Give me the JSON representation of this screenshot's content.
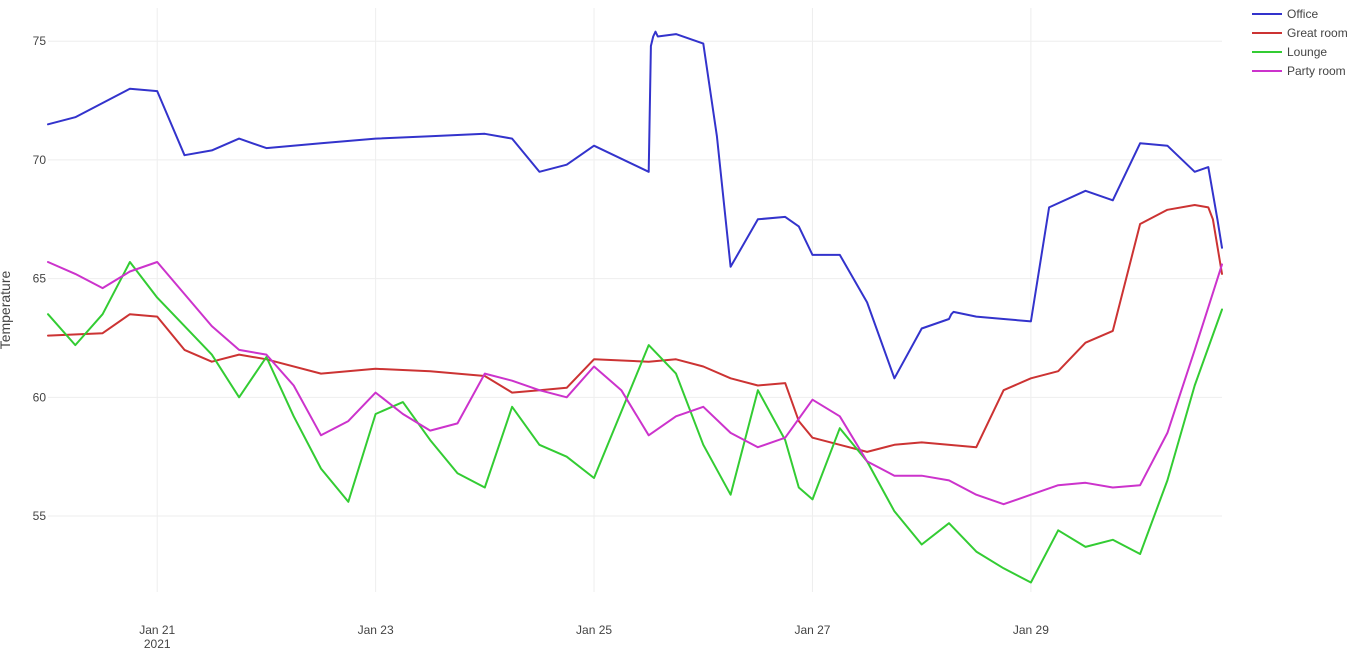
{
  "chart_data": {
    "type": "line",
    "title": "",
    "xlabel": "",
    "ylabel": "Temperature",
    "x_axis": {
      "type": "date",
      "range": [
        "2021-01-20T00:00",
        "2021-01-30T18:00"
      ],
      "ticks": [
        {
          "x": "2021-01-21",
          "label": "Jan 21",
          "sublabel": "2021"
        },
        {
          "x": "2021-01-23",
          "label": "Jan 23",
          "sublabel": ""
        },
        {
          "x": "2021-01-25",
          "label": "Jan 25",
          "sublabel": ""
        },
        {
          "x": "2021-01-27",
          "label": "Jan 27",
          "sublabel": ""
        },
        {
          "x": "2021-01-29",
          "label": "Jan 29",
          "sublabel": ""
        }
      ]
    },
    "y_axis": {
      "range": [
        51.8,
        76.4
      ],
      "ticks": [
        55,
        60,
        65,
        70,
        75
      ]
    },
    "grid": true,
    "legend_position": "top-right",
    "series": [
      {
        "name": "Office",
        "color": "#3333cc",
        "x": [
          "2021-01-20T00:00",
          "2021-01-20T06:00",
          "2021-01-20T12:00",
          "2021-01-20T18:00",
          "2021-01-21T00:00",
          "2021-01-21T06:00",
          "2021-01-21T12:00",
          "2021-01-21T18:00",
          "2021-01-22T00:00",
          "2021-01-22T12:00",
          "2021-01-23T00:00",
          "2021-01-23T12:00",
          "2021-01-24T00:00",
          "2021-01-24T06:00",
          "2021-01-24T12:00",
          "2021-01-24T18:00",
          "2021-01-24T21:00",
          "2021-01-25T00:00",
          "2021-01-25T12:00",
          "2021-01-25T12:30",
          "2021-01-25T13:00",
          "2021-01-25T13:30",
          "2021-01-25T14:00",
          "2021-01-25T18:00",
          "2021-01-26T00:00",
          "2021-01-26T03:00",
          "2021-01-26T06:00",
          "2021-01-26T12:00",
          "2021-01-26T18:00",
          "2021-01-26T21:00",
          "2021-01-27T00:00",
          "2021-01-27T06:00",
          "2021-01-27T12:00",
          "2021-01-27T18:00",
          "2021-01-28T00:00",
          "2021-01-28T06:00",
          "2021-01-28T06:30",
          "2021-01-28T07:00",
          "2021-01-28T12:00",
          "2021-01-28T18:00",
          "2021-01-29T00:00",
          "2021-01-29T04:00",
          "2021-01-29T12:00",
          "2021-01-29T18:00",
          "2021-01-30T00:00",
          "2021-01-30T06:00",
          "2021-01-30T12:00",
          "2021-01-30T15:00",
          "2021-01-30T17:00",
          "2021-01-30T18:00"
        ],
        "y": [
          71.5,
          71.8,
          72.4,
          73.0,
          72.9,
          70.2,
          70.4,
          70.9,
          70.5,
          70.7,
          70.9,
          71.0,
          71.1,
          70.9,
          69.5,
          69.8,
          70.2,
          70.6,
          69.5,
          74.8,
          75.2,
          75.4,
          75.2,
          75.3,
          74.9,
          71.0,
          65.5,
          67.5,
          67.6,
          67.2,
          66.0,
          66.0,
          64.0,
          60.8,
          62.9,
          63.3,
          63.5,
          63.6,
          63.4,
          63.3,
          63.2,
          68.0,
          68.7,
          68.3,
          70.7,
          70.6,
          69.5,
          69.7,
          67.5,
          66.3
        ]
      },
      {
        "name": "Great room",
        "color": "#cc3333",
        "x": [
          "2021-01-20T00:00",
          "2021-01-20T12:00",
          "2021-01-20T18:00",
          "2021-01-21T00:00",
          "2021-01-21T06:00",
          "2021-01-21T12:00",
          "2021-01-21T18:00",
          "2021-01-22T00:00",
          "2021-01-22T12:00",
          "2021-01-23T00:00",
          "2021-01-23T12:00",
          "2021-01-24T00:00",
          "2021-01-24T06:00",
          "2021-01-24T12:00",
          "2021-01-24T18:00",
          "2021-01-25T00:00",
          "2021-01-25T12:00",
          "2021-01-25T18:00",
          "2021-01-26T00:00",
          "2021-01-26T06:00",
          "2021-01-26T12:00",
          "2021-01-26T18:00",
          "2021-01-26T21:00",
          "2021-01-27T00:00",
          "2021-01-27T06:00",
          "2021-01-27T12:00",
          "2021-01-27T18:00",
          "2021-01-28T00:00",
          "2021-01-28T12:00",
          "2021-01-28T18:00",
          "2021-01-29T00:00",
          "2021-01-29T06:00",
          "2021-01-29T12:00",
          "2021-01-29T18:00",
          "2021-01-30T00:00",
          "2021-01-30T06:00",
          "2021-01-30T12:00",
          "2021-01-30T15:00",
          "2021-01-30T16:00",
          "2021-01-30T18:00"
        ],
        "y": [
          62.6,
          62.7,
          63.5,
          63.4,
          62.0,
          61.5,
          61.8,
          61.6,
          61.0,
          61.2,
          61.1,
          60.9,
          60.2,
          60.3,
          60.4,
          61.6,
          61.5,
          61.6,
          61.3,
          60.8,
          60.5,
          60.6,
          59.0,
          58.3,
          58.0,
          57.7,
          58.0,
          58.1,
          57.9,
          60.3,
          60.8,
          61.1,
          62.3,
          62.8,
          67.3,
          67.9,
          68.1,
          68.0,
          67.5,
          65.2
        ]
      },
      {
        "name": "Lounge",
        "color": "#33cc33",
        "x": [
          "2021-01-20T00:00",
          "2021-01-20T06:00",
          "2021-01-20T12:00",
          "2021-01-20T18:00",
          "2021-01-21T00:00",
          "2021-01-21T12:00",
          "2021-01-21T18:00",
          "2021-01-22T00:00",
          "2021-01-22T06:00",
          "2021-01-22T12:00",
          "2021-01-22T18:00",
          "2021-01-23T00:00",
          "2021-01-23T06:00",
          "2021-01-23T12:00",
          "2021-01-23T18:00",
          "2021-01-24T00:00",
          "2021-01-24T06:00",
          "2021-01-24T12:00",
          "2021-01-24T18:00",
          "2021-01-25T00:00",
          "2021-01-25T12:00",
          "2021-01-25T18:00",
          "2021-01-26T00:00",
          "2021-01-26T06:00",
          "2021-01-26T12:00",
          "2021-01-26T18:00",
          "2021-01-26T21:00",
          "2021-01-27T00:00",
          "2021-01-27T06:00",
          "2021-01-27T12:00",
          "2021-01-27T18:00",
          "2021-01-28T00:00",
          "2021-01-28T06:00",
          "2021-01-28T12:00",
          "2021-01-28T18:00",
          "2021-01-29T00:00",
          "2021-01-29T06:00",
          "2021-01-29T12:00",
          "2021-01-29T18:00",
          "2021-01-30T00:00",
          "2021-01-30T06:00",
          "2021-01-30T12:00",
          "2021-01-30T18:00"
        ],
        "y": [
          63.5,
          62.2,
          63.5,
          65.7,
          64.2,
          61.8,
          60.0,
          61.7,
          59.2,
          57.0,
          55.6,
          59.3,
          59.8,
          58.2,
          56.8,
          56.2,
          59.6,
          58.0,
          57.5,
          56.6,
          62.2,
          61.0,
          58.0,
          55.9,
          60.3,
          58.2,
          56.2,
          55.7,
          58.7,
          57.3,
          55.2,
          53.8,
          54.7,
          53.5,
          52.8,
          52.2,
          54.4,
          53.7,
          54.0,
          53.4,
          56.5,
          60.5,
          63.7
        ]
      },
      {
        "name": "Party room",
        "color": "#cc33cc",
        "x": [
          "2021-01-20T00:00",
          "2021-01-20T06:00",
          "2021-01-20T12:00",
          "2021-01-20T18:00",
          "2021-01-21T00:00",
          "2021-01-21T12:00",
          "2021-01-21T18:00",
          "2021-01-22T00:00",
          "2021-01-22T06:00",
          "2021-01-22T12:00",
          "2021-01-22T18:00",
          "2021-01-23T00:00",
          "2021-01-23T06:00",
          "2021-01-23T12:00",
          "2021-01-23T18:00",
          "2021-01-24T00:00",
          "2021-01-24T06:00",
          "2021-01-24T12:00",
          "2021-01-24T18:00",
          "2021-01-25T00:00",
          "2021-01-25T06:00",
          "2021-01-25T12:00",
          "2021-01-25T18:00",
          "2021-01-26T00:00",
          "2021-01-26T06:00",
          "2021-01-26T12:00",
          "2021-01-26T18:00",
          "2021-01-27T00:00",
          "2021-01-27T06:00",
          "2021-01-27T12:00",
          "2021-01-27T18:00",
          "2021-01-28T00:00",
          "2021-01-28T06:00",
          "2021-01-28T12:00",
          "2021-01-28T18:00",
          "2021-01-29T00:00",
          "2021-01-29T06:00",
          "2021-01-29T12:00",
          "2021-01-29T18:00",
          "2021-01-30T00:00",
          "2021-01-30T06:00",
          "2021-01-30T12:00",
          "2021-01-30T18:00"
        ],
        "y": [
          65.7,
          65.2,
          64.6,
          65.3,
          65.7,
          63.0,
          62.0,
          61.8,
          60.5,
          58.4,
          59.0,
          60.2,
          59.3,
          58.6,
          58.9,
          61.0,
          60.7,
          60.3,
          60.0,
          61.3,
          60.3,
          58.4,
          59.2,
          59.6,
          58.5,
          57.9,
          58.3,
          59.9,
          59.2,
          57.3,
          56.7,
          56.7,
          56.5,
          55.9,
          55.5,
          55.9,
          56.3,
          56.4,
          56.2,
          56.3,
          58.5,
          62.0,
          65.6
        ]
      }
    ]
  }
}
